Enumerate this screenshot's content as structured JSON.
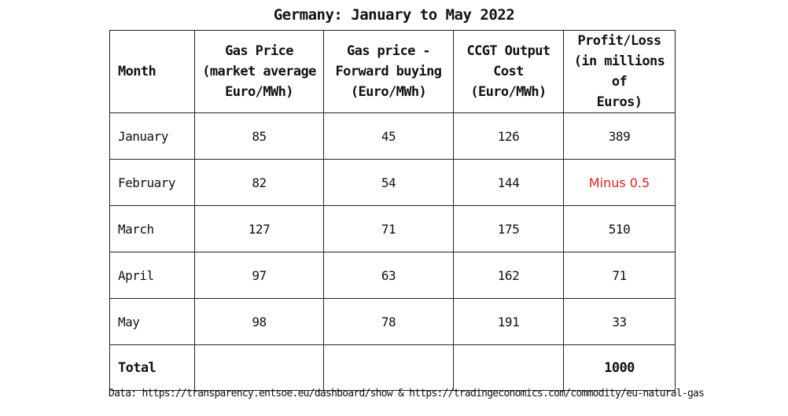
{
  "chart_data": {
    "type": "table",
    "title": "Germany: January to May 2022",
    "columns": [
      "Month",
      "Gas Price\n(market average\nEuro/MWh)",
      "Gas price -\nForward buying\n(Euro/MWh)",
      "CCGT Output\nCost\n(Euro/MWh)",
      "Profit/Loss\n(in millions of\nEuros)"
    ],
    "rows": [
      [
        "January",
        "85",
        "45",
        "126",
        "389"
      ],
      [
        "February",
        "82",
        "54",
        "144",
        "Minus 0.5"
      ],
      [
        "March",
        "127",
        "71",
        "175",
        "510"
      ],
      [
        "April",
        "97",
        "63",
        "162",
        "71"
      ],
      [
        "May",
        "98",
        "78",
        "191",
        "33"
      ]
    ],
    "total": [
      "Total",
      "",
      "",
      "",
      "1000"
    ],
    "negative_color": "#e0201e",
    "source": "Data: https://transparency.entsoe.eu/dashboard/show & https://tradingeconomics.com/commodity/eu-natural-gas"
  }
}
